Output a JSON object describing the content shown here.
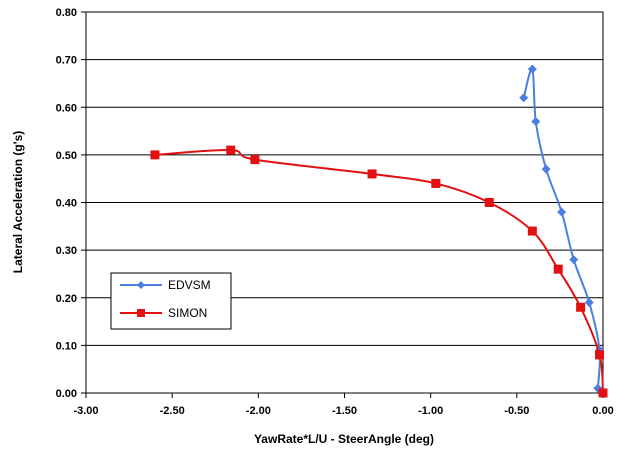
{
  "chart_data": {
    "type": "line",
    "xlabel": "YawRate*L/U - SteerAngle (deg)",
    "ylabel": "Lateral Acceleration (g's)",
    "xlim": [
      -3.0,
      0.0
    ],
    "ylim": [
      0.0,
      0.8
    ],
    "x_ticks": [
      "-3.00",
      "-2.50",
      "-2.00",
      "-1.50",
      "-1.00",
      "-0.50",
      "0.00"
    ],
    "y_ticks": [
      "0.00",
      "0.10",
      "0.20",
      "0.30",
      "0.40",
      "0.50",
      "0.60",
      "0.70",
      "0.80"
    ],
    "grid": "horizontal",
    "legend_position": "lower-left",
    "series": [
      {
        "name": "EDVSM",
        "color": "#4a7fe0",
        "marker": "diamond",
        "x": [
          -0.03,
          -0.02,
          -0.08,
          -0.17,
          -0.24,
          -0.33,
          -0.39,
          -0.41,
          -0.46
        ],
        "y": [
          0.01,
          0.09,
          0.19,
          0.28,
          0.38,
          0.47,
          0.57,
          0.68,
          0.62
        ]
      },
      {
        "name": "SIMON",
        "color": "#e21010",
        "marker": "square",
        "x": [
          0.0,
          -0.02,
          -0.13,
          -0.26,
          -0.41,
          -0.66,
          -0.97,
          -1.34,
          -2.02,
          -2.16,
          -2.6
        ],
        "y": [
          0.0,
          0.08,
          0.18,
          0.26,
          0.34,
          0.4,
          0.44,
          0.46,
          0.49,
          0.51,
          0.5
        ]
      }
    ]
  }
}
